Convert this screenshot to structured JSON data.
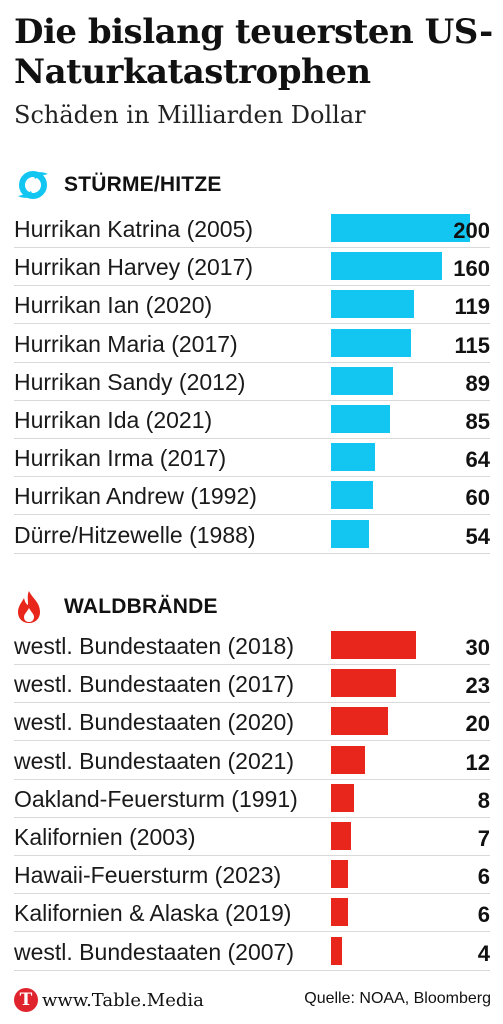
{
  "title": "Die bislang teuersten US-Naturkatastrophen",
  "subtitle": "Schäden in Milliarden Dollar",
  "footer": {
    "logo_letter": "T",
    "site": "www.Table.Media",
    "source": "Quelle: NOAA, Bloomberg"
  },
  "colors": {
    "storms": "#13c6f2",
    "fires": "#e8261c",
    "logo": "#e0242d"
  },
  "icons": {
    "storms": "hurricane-icon",
    "fires": "flame-icon"
  },
  "chart_data": [
    {
      "type": "bar",
      "orientation": "horizontal",
      "section": "STÜRME/HITZE",
      "categories": [
        "Hurrikan Katrina (2005)",
        "Hurrikan Harvey (2017)",
        "Hurrikan Ian (2020)",
        "Hurrikan Maria (2017)",
        "Hurrikan Sandy (2012)",
        "Hurrikan Ida (2021)",
        "Hurrikan Irma (2017)",
        "Hurrikan Andrew (1992)",
        "Dürre/Hitzewelle (1988)"
      ],
      "values": [
        200,
        160,
        119,
        115,
        89,
        85,
        64,
        60,
        54
      ],
      "labels": [
        "200",
        "160",
        "119",
        "115",
        "89",
        "85",
        "64",
        "60",
        "54"
      ],
      "color": "#13c6f2"
    },
    {
      "type": "bar",
      "orientation": "horizontal",
      "section": "WALDBRÄNDE",
      "categories": [
        "westl. Bundestaaten (2018)",
        "westl. Bundestaaten (2017)",
        "westl. Bundestaaten (2020)",
        "westl. Bundestaaten (2021)",
        "Oakland-Feuersturm (1991)",
        "Kalifornien (2003)",
        "Hawaii-Feuersturm (2023)",
        "Kalifornien & Alaska (2019)",
        "westl. Bundestaaten (2007)"
      ],
      "values": [
        30,
        23,
        20,
        12,
        8,
        7,
        6,
        6,
        4
      ],
      "labels": [
        "30",
        "23",
        "20",
        "12",
        "8",
        "7",
        "6",
        "6",
        "4"
      ],
      "color": "#e8261c"
    }
  ]
}
